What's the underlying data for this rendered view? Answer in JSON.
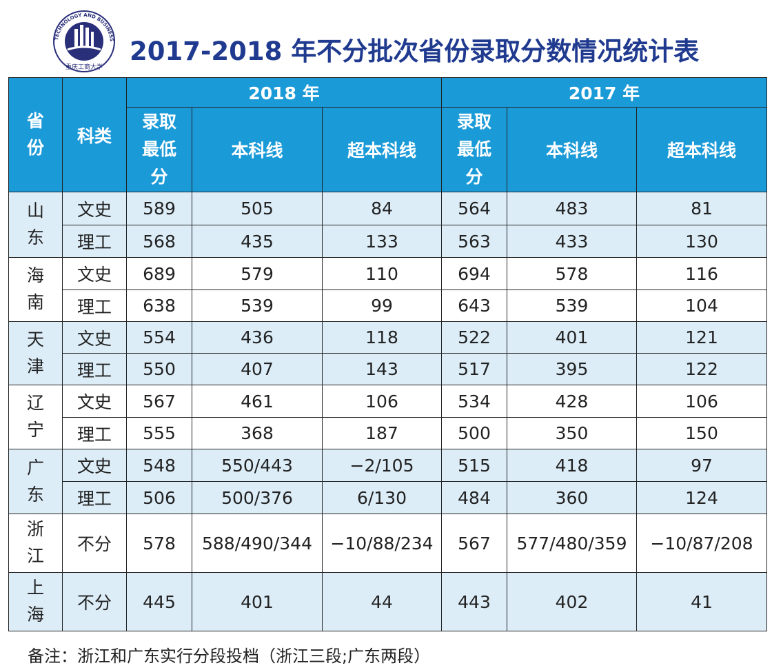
{
  "header": {
    "title": "2017-2018 年不分批次省份录取分数情况统计表",
    "logo_text_en": "CHONGQING TECHNOLOGY AND BUSINESS UNIVERSITY",
    "logo_text_cn": "重庆工商大学"
  },
  "table": {
    "head": {
      "province": "省份",
      "category": "科类",
      "years": [
        {
          "label": "2018 年",
          "columns": [
            "录取最低分",
            "本科线",
            "超本科线"
          ]
        },
        {
          "label": "2017 年",
          "columns": [
            "录取最低分",
            "本科线",
            "超本科线"
          ]
        }
      ]
    },
    "groups": [
      {
        "province": "山东",
        "rows": [
          [
            "文史",
            589,
            505,
            84,
            564,
            483,
            81
          ],
          [
            "理工",
            568,
            435,
            133,
            563,
            433,
            130
          ]
        ]
      },
      {
        "province": "海南",
        "rows": [
          [
            "文史",
            689,
            579,
            110,
            694,
            578,
            116
          ],
          [
            "理工",
            638,
            539,
            99,
            643,
            539,
            104
          ]
        ]
      },
      {
        "province": "天津",
        "rows": [
          [
            "文史",
            554,
            436,
            118,
            522,
            401,
            121
          ],
          [
            "理工",
            550,
            407,
            143,
            517,
            395,
            122
          ]
        ]
      },
      {
        "province": "辽宁",
        "rows": [
          [
            "文史",
            567,
            461,
            106,
            534,
            428,
            106
          ],
          [
            "理工",
            555,
            368,
            187,
            500,
            350,
            150
          ]
        ]
      },
      {
        "province": "广东",
        "rows": [
          [
            "文史",
            548,
            "550/443",
            "−2/105",
            515,
            418,
            97
          ],
          [
            "理工",
            506,
            "500/376",
            "6/130",
            484,
            360,
            124
          ]
        ]
      },
      {
        "province": "浙江",
        "rows": [
          [
            "不分",
            578,
            "588/490/344",
            "−10/88/234",
            567,
            "577/480/359",
            "−10/87/208"
          ]
        ]
      },
      {
        "province": "上海",
        "rows": [
          [
            "不分",
            445,
            401,
            44,
            443,
            402,
            41
          ]
        ]
      }
    ]
  },
  "note": "备注：浙江和广东实行分段投档（浙江三段;广东两段）"
}
